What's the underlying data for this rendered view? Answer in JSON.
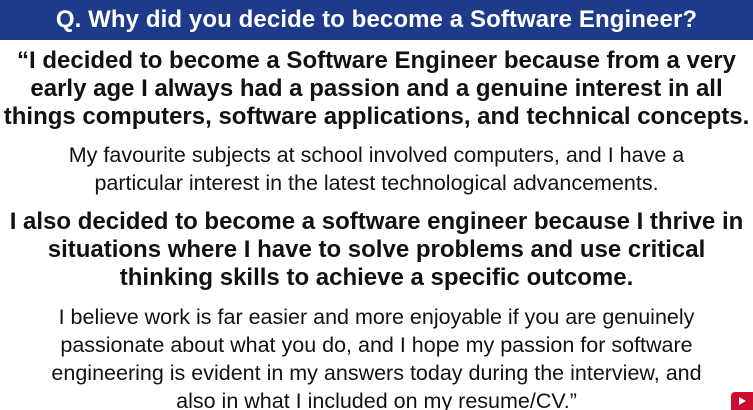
{
  "header": {
    "title": "Q. Why did you decide to become a Software Engineer?"
  },
  "answer": {
    "p1": [
      "“I decided to become a Software Engineer because from a very",
      "early age I always had a passion and a genuine interest in all",
      "things computers, software applications, and technical concepts."
    ],
    "p2": [
      "My favourite subjects at school involved computers, and I have a",
      "particular interest in the latest technological advancements."
    ],
    "p3": [
      "I also decided to become a software engineer because I thrive in",
      "situations where I have to solve problems and use critical",
      "thinking skills to achieve a specific outcome."
    ],
    "p4": [
      "I believe work is far easier and more enjoyable if you are genuinely",
      "passionate about what you do, and I hope my passion for software",
      "engineering is evident in my answers today during the interview, and",
      "also in what I included on my resume/CV.”"
    ]
  },
  "colors": {
    "header_bg": "#1e3a8a",
    "header_text": "#ffffff",
    "body_text": "#111111",
    "badge": "#c8102e"
  },
  "icons": {
    "corner": "play-icon"
  }
}
